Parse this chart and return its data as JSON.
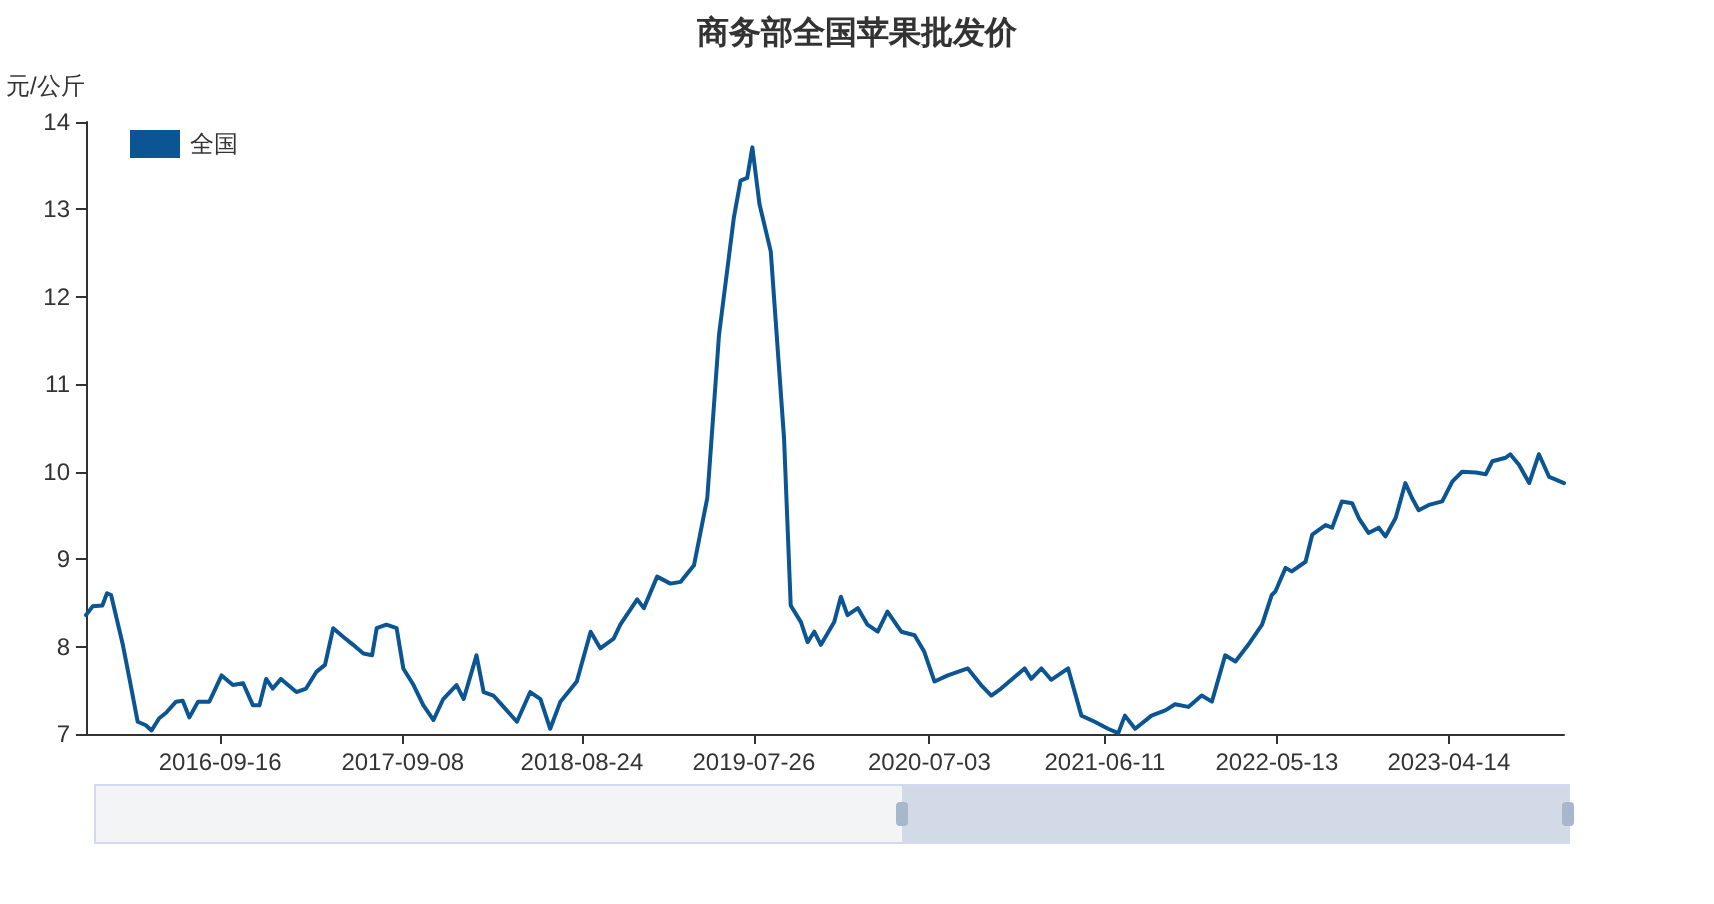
{
  "chart_data": {
    "type": "line",
    "title": "商务部全国苹果批发价",
    "ylabel": "元/公斤",
    "x": [
      "2015-12-29",
      "2016-01-11",
      "2016-01-30",
      "2016-02-08",
      "2016-02-16",
      "2016-03-10",
      "2016-03-23",
      "2016-04-08",
      "2016-04-24",
      "2016-05-05",
      "2016-05-20",
      "2016-06-02",
      "2016-06-22",
      "2016-07-05",
      "2016-07-18",
      "2016-08-04",
      "2016-08-26",
      "2016-09-19",
      "2016-10-11",
      "2016-10-31",
      "2016-11-19",
      "2016-12-02",
      "2016-12-15",
      "2016-12-28",
      "2017-01-13",
      "2017-02-12",
      "2017-03-03",
      "2017-03-23",
      "2017-04-09",
      "2017-04-25",
      "2017-05-15",
      "2017-06-03",
      "2017-06-23",
      "2017-07-10",
      "2017-07-19",
      "2017-08-07",
      "2017-08-27",
      "2017-09-09",
      "2017-09-29",
      "2017-10-18",
      "2017-11-07",
      "2017-11-26",
      "2017-12-22",
      "2018-01-05",
      "2018-01-30",
      "2018-02-13",
      "2018-03-04",
      "2018-03-24",
      "2018-04-19",
      "2018-05-15",
      "2018-06-04",
      "2018-06-23",
      "2018-07-13",
      "2018-08-14",
      "2018-09-10",
      "2018-09-29",
      "2018-10-25",
      "2018-11-07",
      "2018-12-10",
      "2018-12-23",
      "2019-01-18",
      "2019-02-13",
      "2019-03-05",
      "2019-03-31",
      "2019-04-26",
      "2019-05-19",
      "2019-06-17",
      "2019-06-30",
      "2019-07-13",
      "2019-07-23",
      "2019-08-06",
      "2019-08-28",
      "2019-09-23",
      "2019-10-06",
      "2019-10-26",
      "2019-11-08",
      "2019-11-21",
      "2019-12-04",
      "2019-12-30",
      "2020-01-12",
      "2020-01-25",
      "2020-02-14",
      "2020-03-04",
      "2020-03-24",
      "2020-04-12",
      "2020-05-09",
      "2020-06-04",
      "2020-06-23",
      "2020-07-13",
      "2020-08-08",
      "2020-09-16",
      "2020-10-12",
      "2020-11-01",
      "2020-11-20",
      "2021-01-05",
      "2021-01-18",
      "2021-02-07",
      "2021-02-26",
      "2021-03-31",
      "2021-04-26",
      "2021-05-22",
      "2021-06-17",
      "2021-07-07",
      "2021-07-20",
      "2021-08-09",
      "2021-09-10",
      "2021-10-07",
      "2021-10-26",
      "2021-11-21",
      "2021-12-17",
      "2022-01-06",
      "2022-02-01",
      "2022-02-21",
      "2022-03-18",
      "2022-04-14",
      "2022-05-03",
      "2022-05-10",
      "2022-05-30",
      "2022-06-11",
      "2022-07-08",
      "2022-07-21",
      "2022-08-16",
      "2022-08-29",
      "2022-09-17",
      "2022-10-07",
      "2022-10-20",
      "2022-11-08",
      "2022-11-28",
      "2022-12-11",
      "2022-12-31",
      "2023-01-19",
      "2023-02-01",
      "2023-02-14",
      "2023-03-06",
      "2023-04-01",
      "2023-04-21",
      "2023-05-10",
      "2023-06-06",
      "2023-06-25",
      "2023-07-08",
      "2023-08-03",
      "2023-08-12",
      "2023-08-29",
      "2023-09-18",
      "2023-10-07",
      "2023-10-27",
      "2023-11-09",
      "2023-11-25"
    ],
    "series": [
      {
        "name": "全国",
        "color": "#0a5592",
        "values": [
          8.36,
          8.46,
          8.47,
          8.61,
          8.59,
          8.02,
          7.63,
          7.14,
          7.1,
          7.04,
          7.18,
          7.24,
          7.37,
          7.38,
          7.19,
          7.37,
          7.37,
          7.67,
          7.56,
          7.58,
          7.33,
          7.33,
          7.63,
          7.52,
          7.63,
          7.48,
          7.52,
          7.71,
          7.79,
          8.21,
          8.11,
          8.02,
          7.92,
          7.9,
          8.21,
          8.25,
          8.21,
          7.75,
          7.56,
          7.33,
          7.16,
          7.4,
          7.56,
          7.4,
          7.9,
          7.48,
          7.44,
          7.31,
          7.14,
          7.48,
          7.4,
          7.06,
          7.37,
          7.6,
          8.17,
          7.98,
          8.09,
          8.25,
          8.54,
          8.44,
          8.8,
          8.72,
          8.74,
          8.93,
          9.7,
          11.57,
          12.91,
          13.33,
          13.36,
          13.71,
          13.06,
          12.52,
          10.38,
          8.47,
          8.28,
          8.05,
          8.17,
          8.02,
          8.28,
          8.57,
          8.36,
          8.44,
          8.25,
          8.17,
          8.4,
          8.17,
          8.13,
          7.94,
          7.6,
          7.67,
          7.75,
          7.56,
          7.44,
          7.52,
          7.75,
          7.63,
          7.75,
          7.62,
          7.75,
          7.21,
          7.14,
          7.06,
          7.01,
          7.21,
          7.06,
          7.21,
          7.27,
          7.34,
          7.31,
          7.44,
          7.37,
          7.9,
          7.83,
          8.02,
          8.25,
          8.59,
          8.63,
          8.9,
          8.86,
          8.97,
          9.28,
          9.39,
          9.36,
          9.66,
          9.64,
          9.47,
          9.3,
          9.36,
          9.26,
          9.47,
          9.87,
          9.7,
          9.56,
          9.62,
          9.66,
          9.89,
          10.0,
          9.99,
          9.97,
          10.12,
          10.16,
          10.2,
          10.08,
          9.87,
          10.2,
          9.94,
          9.91,
          9.87
        ]
      }
    ],
    "xlim": [
      "2015-12-29",
      "2023-11-25"
    ],
    "xticks": [
      "2016-09-16",
      "2017-09-08",
      "2018-08-24",
      "2019-07-26",
      "2020-07-03",
      "2021-06-11",
      "2022-05-13",
      "2023-04-14"
    ],
    "ylim": [
      7,
      14
    ],
    "yticks": [
      7,
      8,
      9,
      10,
      11,
      12,
      13,
      14
    ],
    "legend": "top left",
    "grid": false
  }
}
